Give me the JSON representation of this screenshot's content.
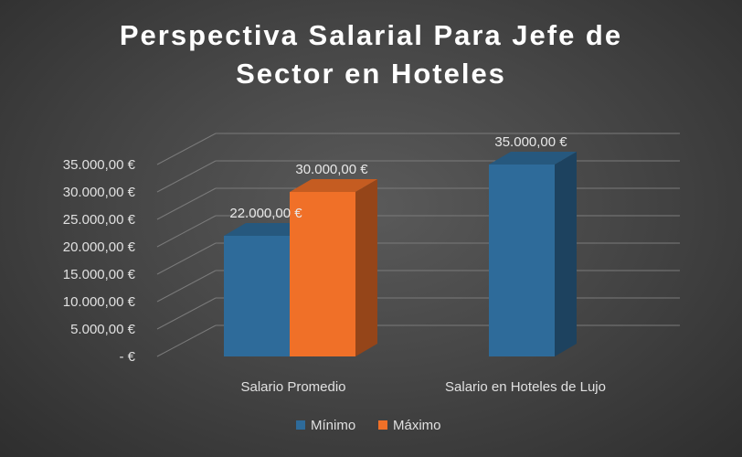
{
  "chart_data": {
    "type": "bar",
    "title_line1": "Perspectiva Salarial Para Jefe de",
    "title_line2": "Sector en Hoteles",
    "categories": [
      "Salario Promedio",
      "Salario en Hoteles de Lujo"
    ],
    "series": [
      {
        "name": "Mínimo",
        "color": "#2e6b9a",
        "values": [
          22000,
          35000
        ]
      },
      {
        "name": "Máximo",
        "color": "#f07028",
        "values": [
          30000,
          null
        ]
      }
    ],
    "data_labels": [
      [
        "22.000,00 €",
        "35.000,00 €"
      ],
      [
        "30.000,00 €",
        null
      ]
    ],
    "ylim": [
      0,
      35000
    ],
    "y_ticks": [
      {
        "value": 0,
        "label": "-  €"
      },
      {
        "value": 5000,
        "label": "5.000,00 €"
      },
      {
        "value": 10000,
        "label": "10.000,00 €"
      },
      {
        "value": 15000,
        "label": "15.000,00 €"
      },
      {
        "value": 20000,
        "label": "20.000,00 €"
      },
      {
        "value": 25000,
        "label": "25.000,00 €"
      },
      {
        "value": 30000,
        "label": "30.000,00 €"
      },
      {
        "value": 35000,
        "label": "35.000,00 €"
      }
    ],
    "grid": true,
    "legend_position": "bottom",
    "style": "3d-column"
  }
}
